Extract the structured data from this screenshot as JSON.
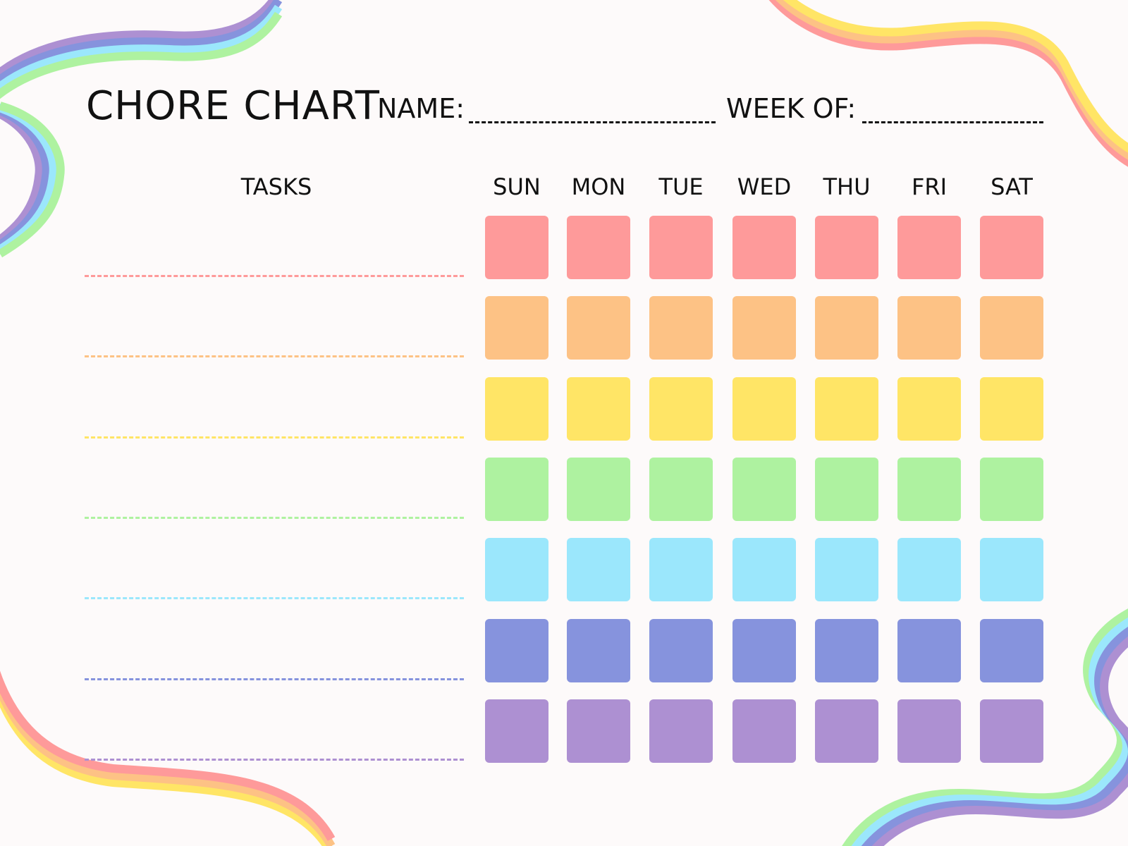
{
  "header": {
    "title": "CHORE CHART",
    "name_label": "NAME:",
    "week_label": "WEEK OF:"
  },
  "tasks_header": "TASKS",
  "days": [
    "SUN",
    "MON",
    "TUE",
    "WED",
    "THU",
    "FRI",
    "SAT"
  ],
  "row_colors": [
    "#fe9a9a",
    "#fdc285",
    "#ffe566",
    "#aef2a0",
    "#9be7fc",
    "#8693dd",
    "#ad90d2"
  ],
  "task_rows": 7
}
